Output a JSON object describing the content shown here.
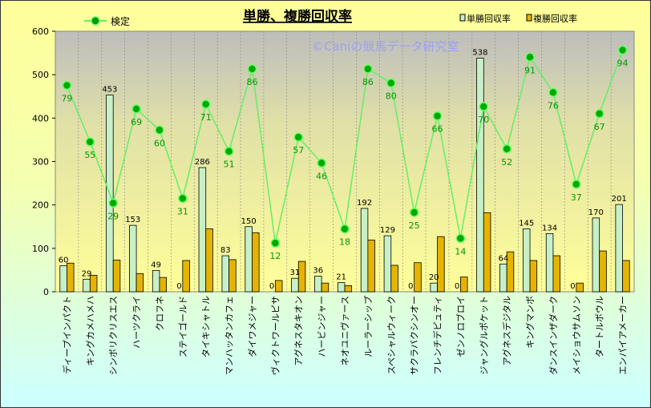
{
  "chart_data": {
    "type": "bar+line",
    "title": "単勝、複勝回収率",
    "watermark": "©Caniの競馬データ研究室",
    "ylim": [
      0,
      600
    ],
    "yticks": [
      0,
      100,
      200,
      300,
      400,
      500,
      600
    ],
    "y2lim": [
      -8.7,
      102
    ],
    "grid": true,
    "legend_placement": "top",
    "categories": [
      "ディープインパクト",
      "キングカメハメハ",
      "シンボリクリスエス",
      "ハーツクライ",
      "クロフネ",
      "ステイゴールド",
      "タイキシャトル",
      "マンハッタンカフェ",
      "ダイワメジャー",
      "ヴィクトワールピサ",
      "アグネスタキオン",
      "ハービンジャー",
      "ネオユニヴァース",
      "ルーラーシップ",
      "スペシャルウィーク",
      "サクラバクシンオー",
      "フレンチデピュティ",
      "ゼンノロブロイ",
      "ジャングルポケット",
      "アグネスデジタル",
      "キングマンボ",
      "ダンスインザダーク",
      "メイショウサムソン",
      "タートルボウル",
      "エンパイアメーカー"
    ],
    "series": [
      {
        "name": "単勝回収率",
        "type": "bar",
        "color": "#c8f0c8",
        "values": [
          60,
          29,
          453,
          153,
          49,
          0,
          286,
          83,
          150,
          0,
          31,
          36,
          21,
          192,
          129,
          0,
          20,
          0,
          538,
          64,
          145,
          134,
          0,
          170,
          201
        ]
      },
      {
        "name": "複勝回収率",
        "type": "bar",
        "color": "#e6b400",
        "values": [
          66,
          38,
          73,
          42,
          33,
          72,
          145,
          74,
          136,
          26,
          70,
          20,
          14,
          119,
          61,
          67,
          127,
          34,
          182,
          92,
          72,
          83,
          20,
          94,
          72
        ]
      },
      {
        "name": "検定",
        "type": "line",
        "color": "#00cc00",
        "axis": "secondary",
        "values": [
          79,
          55,
          29,
          69,
          60,
          31,
          71,
          51,
          86,
          12,
          57,
          46,
          18,
          86,
          80,
          25,
          66,
          14,
          70,
          52,
          91,
          76,
          37,
          67,
          94
        ]
      }
    ]
  }
}
